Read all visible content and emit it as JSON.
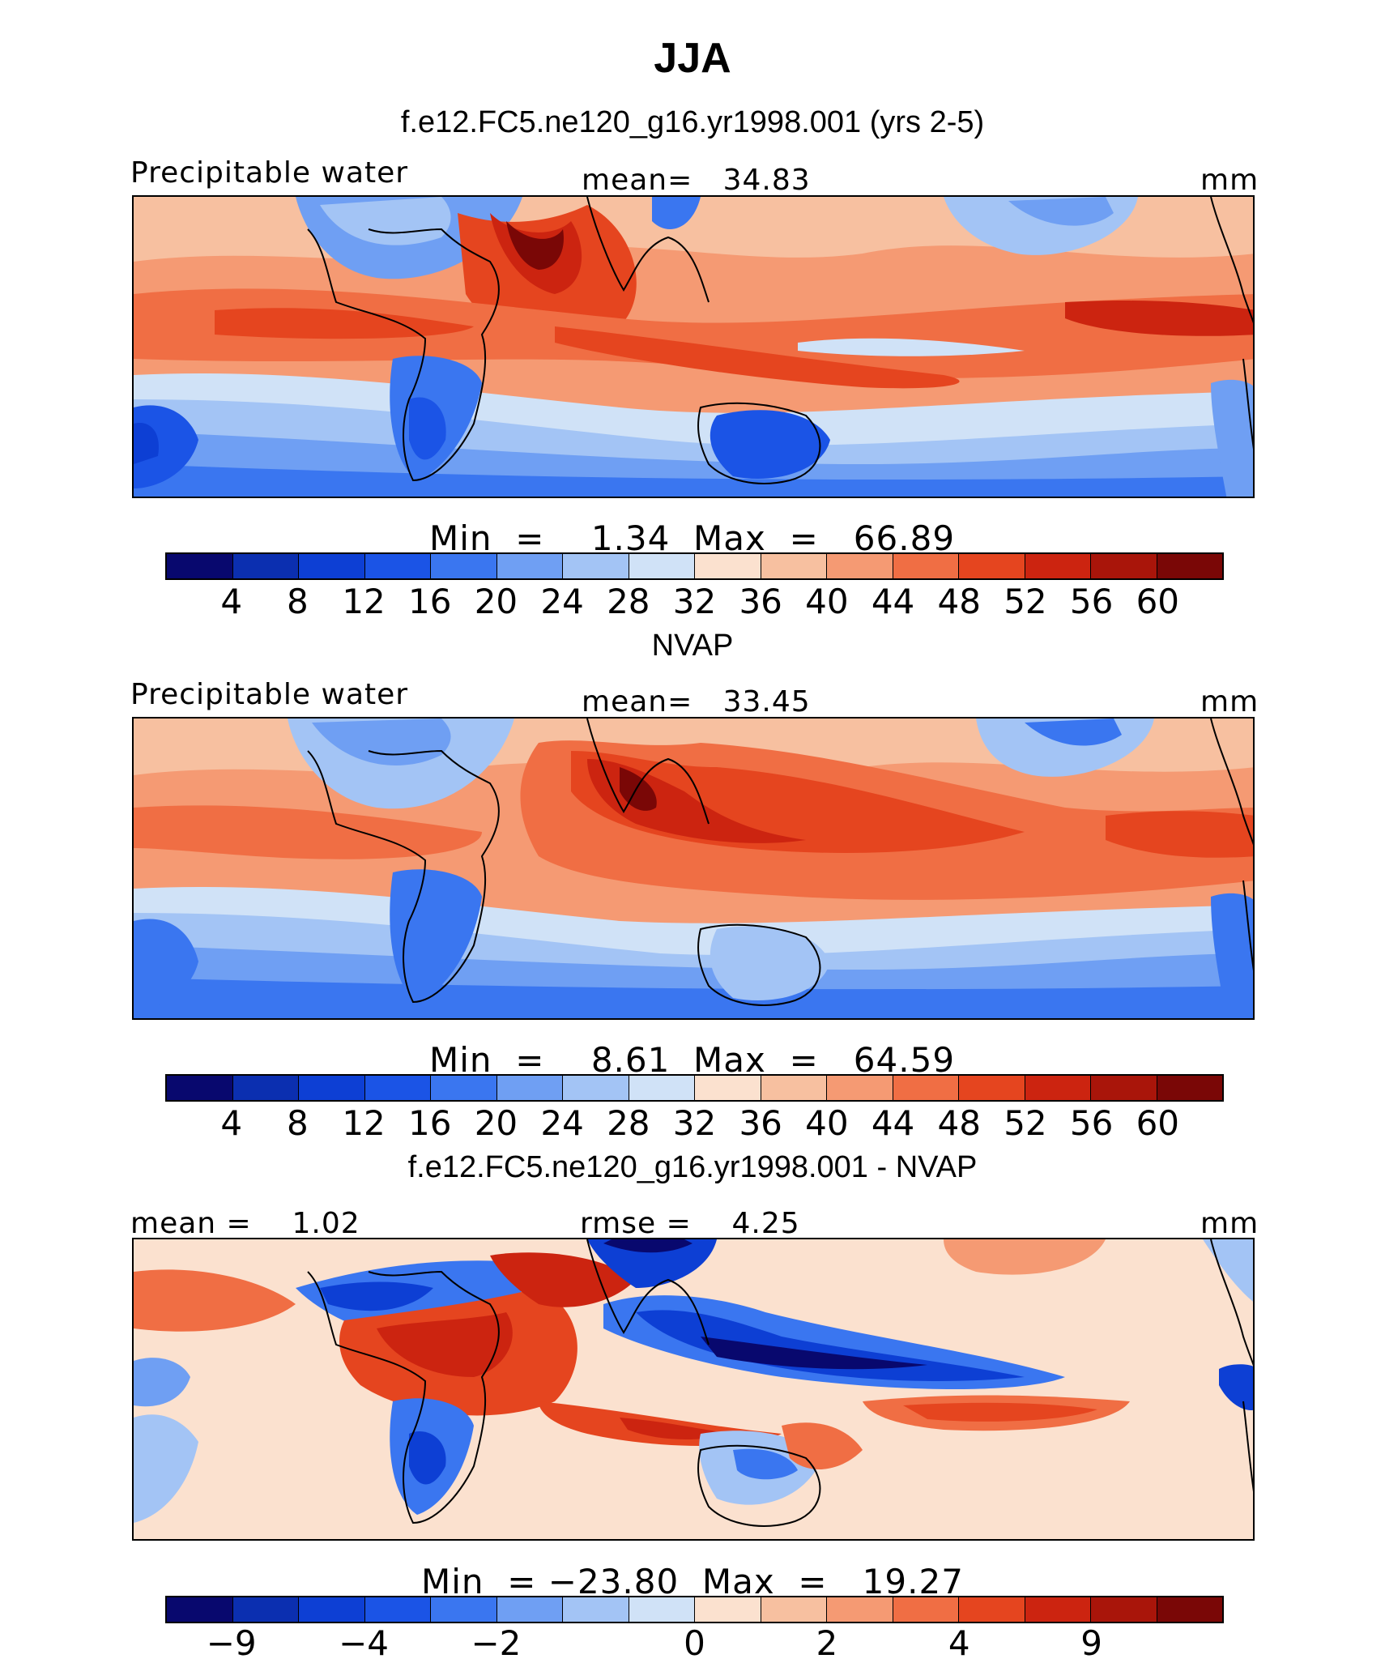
{
  "figure": {
    "title": "JJA"
  },
  "panels": [
    {
      "heading": "f.e12.FC5.ne120_g16.yr1998.001 (yrs 2-5)",
      "left_label": "Precipitable water",
      "center_label": "mean=   34.83",
      "units": "mm",
      "minmax": "Min  =    1.34  Max  =   66.89",
      "colors": [
        "#08086e",
        "#0b2fb0",
        "#0d3fd4",
        "#1b54e6",
        "#3a76f0",
        "#6f9ff3",
        "#a3c4f5",
        "#d0e2f7",
        "#fbe1cf",
        "#f7c0a0",
        "#f59a73",
        "#f06e44",
        "#e5451f",
        "#cc2410",
        "#a9150a",
        "#7a0706"
      ],
      "tick_labels": [
        "4",
        "8",
        "12",
        "16",
        "20",
        "24",
        "28",
        "32",
        "36",
        "40",
        "44",
        "48",
        "52",
        "56",
        "60"
      ]
    },
    {
      "heading": "NVAP",
      "left_label": "Precipitable water",
      "center_label": "mean=   33.45",
      "units": "mm",
      "minmax": "Min  =    8.61  Max  =   64.59",
      "colors": [
        "#08086e",
        "#0b2fb0",
        "#0d3fd4",
        "#1b54e6",
        "#3a76f0",
        "#6f9ff3",
        "#a3c4f5",
        "#d0e2f7",
        "#fbe1cf",
        "#f7c0a0",
        "#f59a73",
        "#f06e44",
        "#e5451f",
        "#cc2410",
        "#a9150a",
        "#7a0706"
      ],
      "tick_labels": [
        "4",
        "8",
        "12",
        "16",
        "20",
        "24",
        "28",
        "32",
        "36",
        "40",
        "44",
        "48",
        "52",
        "56",
        "60"
      ]
    },
    {
      "heading": "f.e12.FC5.ne120_g16.yr1998.001 - NVAP",
      "left_label": "mean =    1.02",
      "center_label": "rmse =    4.25",
      "units": "mm",
      "minmax": "Min  = −23.80  Max  =   19.27",
      "colors": [
        "#08086e",
        "#0b2fb0",
        "#0d3fd4",
        "#1b54e6",
        "#3a76f0",
        "#6f9ff3",
        "#a3c4f5",
        "#d0e2f7",
        "#fbe1cf",
        "#f7c0a0",
        "#f59a73",
        "#f06e44",
        "#e5451f",
        "#cc2410",
        "#a9150a",
        "#7a0706"
      ],
      "tick_labels": [
        "−9",
        "−4",
        "−2",
        "0",
        "2",
        "4",
        "9"
      ]
    }
  ]
}
